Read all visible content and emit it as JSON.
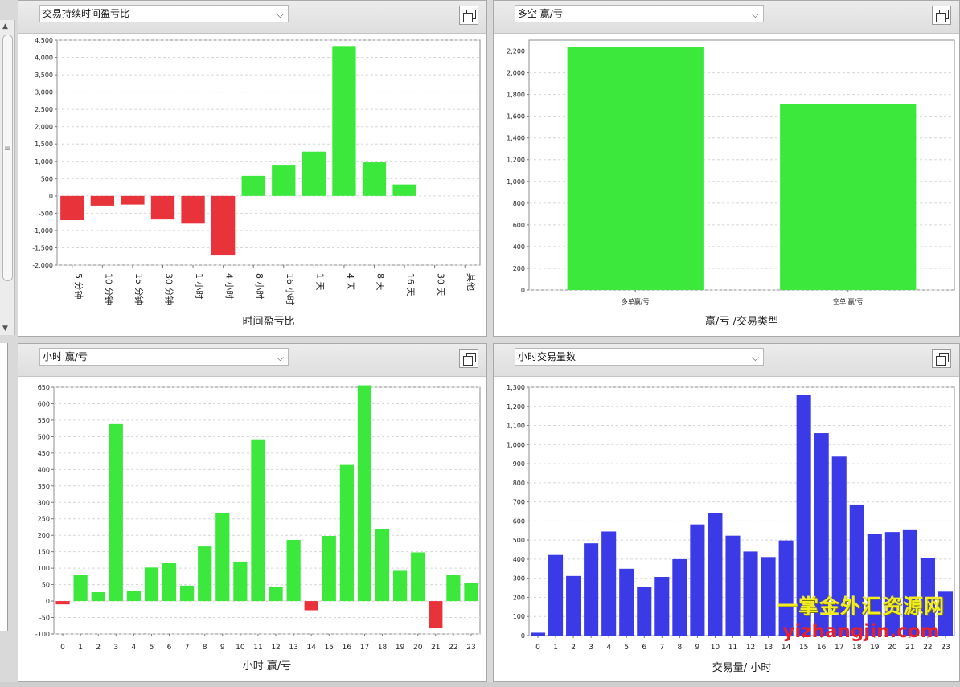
{
  "panels": [
    {
      "title": "交易持续时间盈亏比",
      "chart_data": {
        "type": "bar",
        "xlabel": "时间盈亏比",
        "ylim": [
          -2000,
          4500
        ],
        "yticks": [
          -2000,
          -1500,
          -1000,
          -500,
          0,
          500,
          1000,
          1500,
          2000,
          2500,
          3000,
          3500,
          4000,
          4500
        ],
        "categories": [
          "5 分钟",
          "10 分钟",
          "15 分钟",
          "30 分钟",
          "1 小时",
          "4 小时",
          "8 小时",
          "16 小时",
          "1 天",
          "4 天",
          "8 天",
          "16 天",
          "30 天",
          "其他"
        ],
        "values": [
          -700,
          -280,
          -250,
          -680,
          -800,
          -1700,
          580,
          900,
          1280,
          4330,
          970,
          330,
          0,
          0
        ],
        "grid": true,
        "label_rotation": "vertical",
        "colors": {
          "positive": "#3de83d",
          "negative": "#e8333b"
        }
      }
    },
    {
      "title": "多空 赢/亏",
      "chart_data": {
        "type": "bar",
        "xlabel": "赢/亏 /交易类型",
        "ylim": [
          0,
          2300
        ],
        "yticks": [
          0,
          200,
          400,
          600,
          800,
          1000,
          1200,
          1400,
          1600,
          1800,
          2000,
          2200
        ],
        "categories": [
          "多单赢/亏",
          "空单 赢/亏"
        ],
        "values": [
          2240,
          1710
        ],
        "grid": true,
        "label_rotation": "none",
        "colors": {
          "positive": "#3de83d",
          "negative": "#e8333b"
        }
      }
    },
    {
      "title": "小时 赢/亏",
      "chart_data": {
        "type": "bar",
        "xlabel": "小时 赢/亏",
        "ylim": [
          -100,
          650
        ],
        "yticks": [
          -100,
          -50,
          0,
          50,
          100,
          150,
          200,
          250,
          300,
          350,
          400,
          450,
          500,
          550,
          600,
          650
        ],
        "categories": [
          "0",
          "1",
          "2",
          "3",
          "4",
          "5",
          "6",
          "7",
          "8",
          "9",
          "10",
          "11",
          "12",
          "13",
          "14",
          "15",
          "16",
          "17",
          "18",
          "19",
          "20",
          "21",
          "22",
          "23"
        ],
        "values": [
          -10,
          80,
          27,
          538,
          32,
          102,
          115,
          47,
          166,
          267,
          120,
          492,
          44,
          186,
          -28,
          198,
          414,
          656,
          220,
          92,
          148,
          -82,
          80,
          56
        ],
        "grid": true,
        "label_rotation": "none",
        "colors": {
          "positive": "#3de83d",
          "negative": "#e8333b"
        }
      }
    },
    {
      "title": "小时交易量数",
      "chart_data": {
        "type": "bar",
        "xlabel": "交易量/ 小时",
        "ylim": [
          0,
          1300
        ],
        "yticks": [
          0,
          100,
          200,
          300,
          400,
          500,
          600,
          700,
          800,
          900,
          1000,
          1100,
          1200,
          1300
        ],
        "categories": [
          "0",
          "1",
          "2",
          "3",
          "4",
          "5",
          "6",
          "7",
          "8",
          "9",
          "10",
          "11",
          "12",
          "13",
          "14",
          "15",
          "16",
          "17",
          "18",
          "19",
          "20",
          "21",
          "22",
          "23"
        ],
        "values": [
          15,
          422,
          312,
          483,
          545,
          350,
          255,
          307,
          400,
          582,
          640,
          523,
          440,
          411,
          498,
          1262,
          1060,
          937,
          686,
          532,
          542,
          556,
          405,
          230
        ],
        "grid": true,
        "label_rotation": "none",
        "colors": {
          "positive": "#3a3ae6",
          "negative": "#3a3ae6"
        }
      }
    }
  ],
  "watermark": {
    "cn": "一掌金外汇资源网",
    "url": "yizhangjin.com"
  },
  "icons": {
    "maximize": "maximize-icon",
    "dropdown": "chevron-down-icon"
  }
}
